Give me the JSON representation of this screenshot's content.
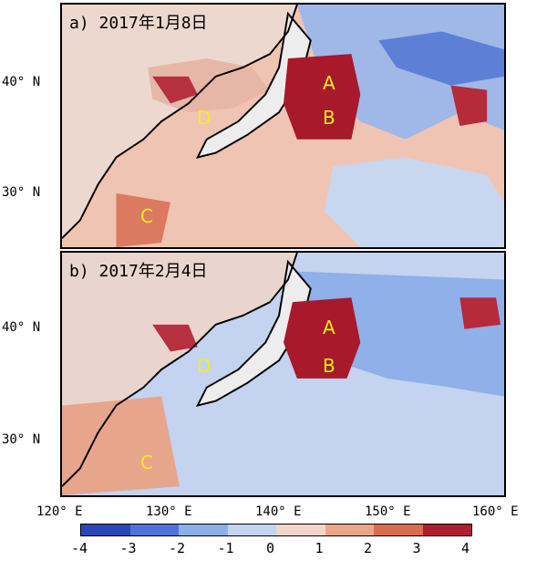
{
  "panels": [
    {
      "title": "a) 2017年1月8日",
      "labels": {
        "A": "A",
        "B": "B",
        "C": "C",
        "D": "D"
      }
    },
    {
      "title": "b) 2017年2月4日",
      "labels": {
        "A": "A",
        "B": "B",
        "C": "C",
        "D": "D"
      }
    }
  ],
  "lat_labels_a": [
    "40° N",
    "30° N"
  ],
  "lat_labels_b": [
    "40° N",
    "30° N"
  ],
  "lon_labels": [
    "120° E",
    "130° E",
    "140° E",
    "150° E",
    "160° E"
  ],
  "colorbar": {
    "ticks": [
      "-4",
      "-3",
      "-2",
      "-1",
      "0",
      "1",
      "2",
      "3",
      "4"
    ],
    "colors": [
      "#2b46b8",
      "#4f74d6",
      "#8eaee8",
      "#c3d3f0",
      "#f3d6c9",
      "#eba68a",
      "#dd6b50",
      "#b01d2e"
    ]
  },
  "colors": {
    "land": "#e9e9e9",
    "ocean_neg": "#a9c1ea",
    "ocean_pos": "#f0b9a3",
    "hot": "#a4162a",
    "label_yellow": "#f2ee1a"
  }
}
